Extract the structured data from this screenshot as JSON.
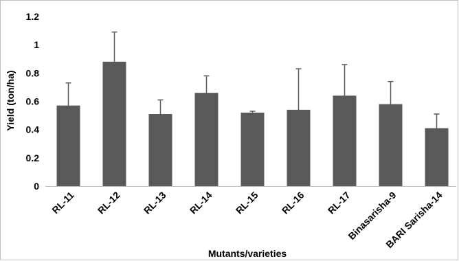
{
  "chart_data": {
    "type": "bar",
    "title": "",
    "xlabel": "Mutants/varieties",
    "ylabel": "Yield (ton/ha)",
    "categories": [
      "RL-11",
      "RL-12",
      "RL-13",
      "RL-14",
      "RL-15",
      "RL-16",
      "RL-17",
      "Binasarisha-9",
      "BARI Sarisha-14"
    ],
    "series": [
      {
        "values": [
          0.57,
          0.88,
          0.51,
          0.66,
          0.52,
          0.54,
          0.64,
          0.58,
          0.41
        ],
        "error": [
          0.16,
          0.21,
          0.1,
          0.12,
          0.01,
          0.29,
          0.22,
          0.16,
          0.1
        ]
      }
    ],
    "ylim": [
      0,
      1.2
    ],
    "yticks": [
      "0",
      "0.2",
      "0.4",
      "0.6",
      "0.8",
      "1",
      "1.2"
    ],
    "grid": false,
    "legend": "none",
    "colors": {
      "bar": "#595959",
      "error_bar": "#595959",
      "axis": "#bfbfbf",
      "text": "#000000"
    }
  }
}
